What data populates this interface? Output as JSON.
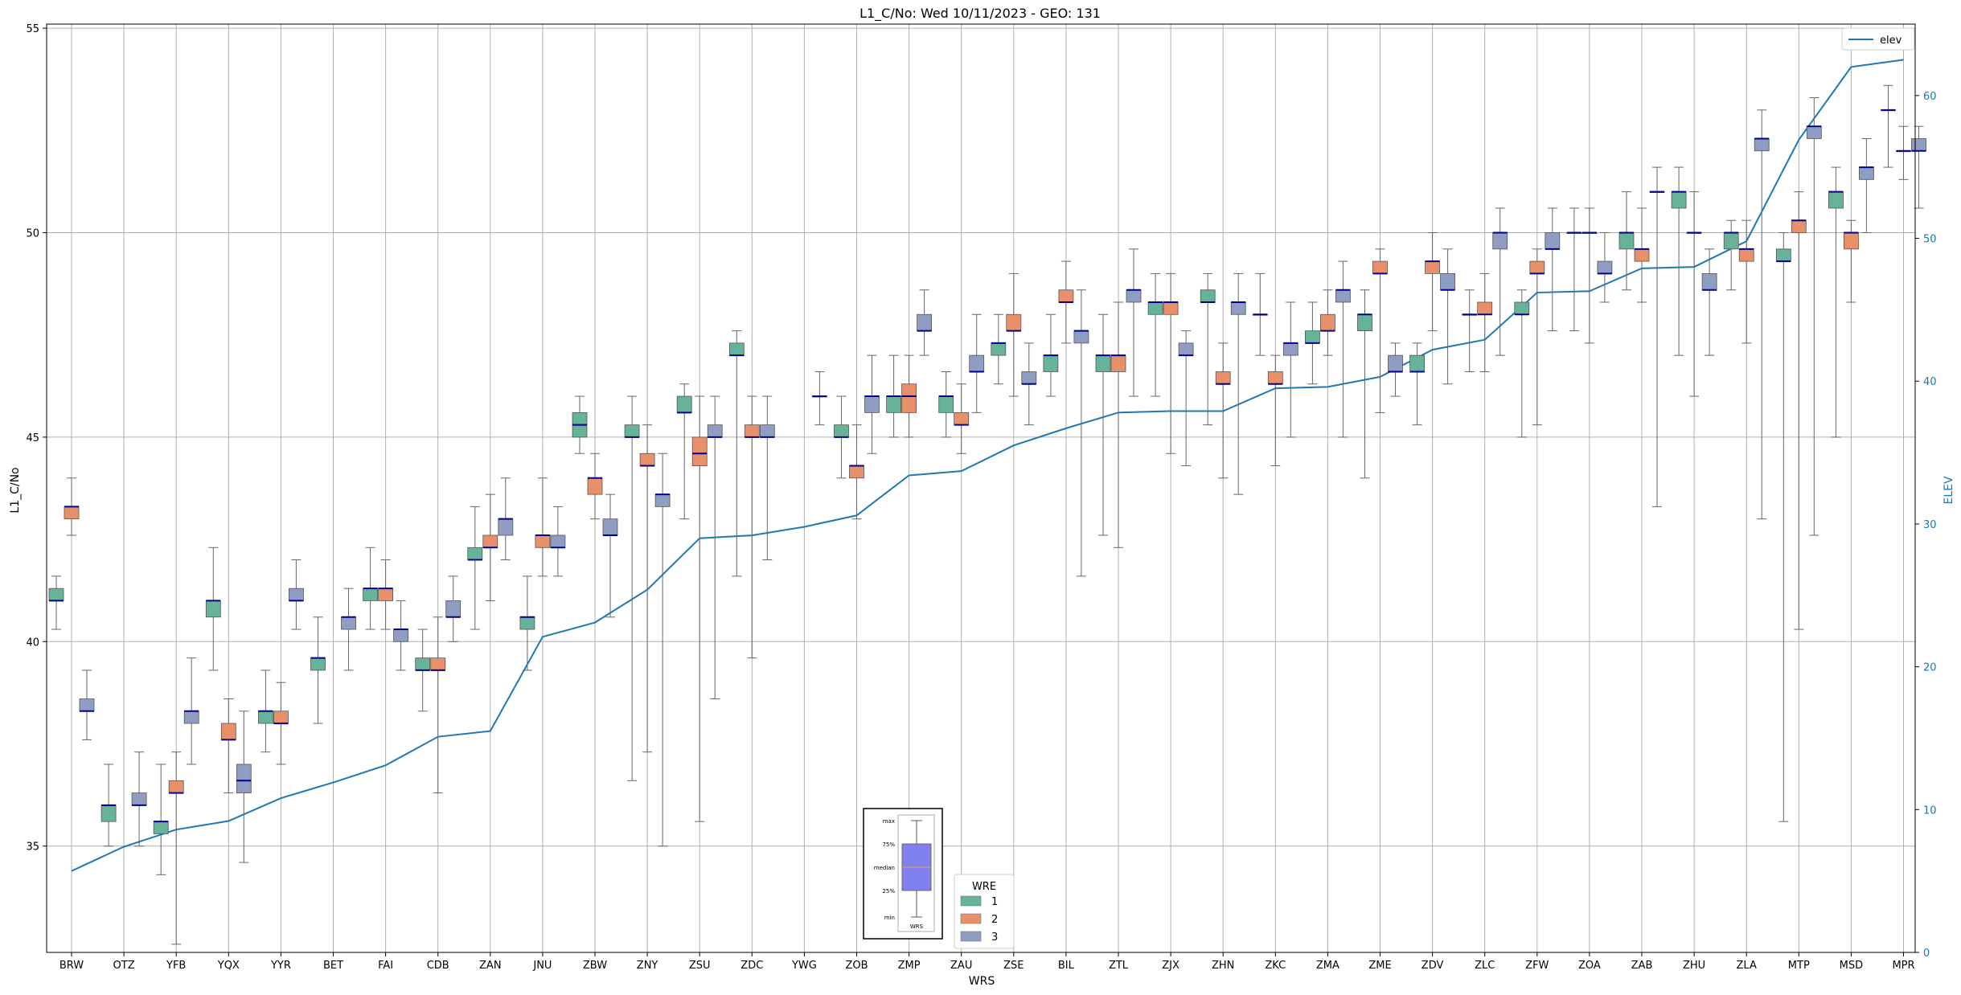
{
  "chart_data": {
    "type": "box",
    "title": "L1_C/No: Wed 10/11/2023 - GEO: 131",
    "xlabel": "WRS",
    "ylabel": "L1_C/No",
    "y2label": "ELEV",
    "ylim": [
      32.4,
      55.1
    ],
    "y2lim": [
      0,
      65
    ],
    "yticks": [
      35,
      40,
      45,
      50,
      55
    ],
    "y2ticks": [
      0,
      10,
      20,
      30,
      40,
      50,
      60
    ],
    "grid": true,
    "categories": [
      "BRW",
      "OTZ",
      "YFB",
      "YQX",
      "YYR",
      "BET",
      "FAI",
      "CDB",
      "ZAN",
      "JNU",
      "ZBW",
      "ZNY",
      "ZSU",
      "ZDC",
      "YWG",
      "ZOB",
      "ZMP",
      "ZAU",
      "ZSE",
      "BIL",
      "ZTL",
      "ZJX",
      "ZHN",
      "ZKC",
      "ZMA",
      "ZME",
      "ZDV",
      "ZLC",
      "ZFW",
      "ZOA",
      "ZAB",
      "ZHU",
      "ZLA",
      "MTP",
      "MSD",
      "MPR"
    ],
    "elev": [
      5.7,
      7.4,
      8.6,
      9.2,
      10.8,
      11.9,
      13.1,
      15.1,
      15.5,
      22.1,
      23.1,
      25.4,
      29.0,
      29.2,
      29.8,
      30.6,
      33.4,
      33.7,
      35.5,
      36.7,
      37.8,
      37.9,
      37.9,
      39.5,
      39.6,
      40.3,
      42.2,
      42.9,
      46.2,
      46.3,
      47.9,
      48.0,
      49.8,
      56.9,
      62.0,
      62.5
    ],
    "wre_colors": {
      "1": "#66b39a",
      "2": "#e8906a",
      "3": "#909dc2"
    },
    "elev_color": "#1f77b4",
    "legend_elev": "elev",
    "legend_wre_title": "WRE",
    "legend_wre_items": [
      "1",
      "2",
      "3"
    ],
    "boxes": [
      {
        "station": "BRW",
        "wre": 1,
        "min": 40.3,
        "q1": 41.0,
        "median": 41.0,
        "q3": 41.3,
        "max": 41.6
      },
      {
        "station": "BRW",
        "wre": 2,
        "min": 42.6,
        "q1": 43.0,
        "median": 43.3,
        "q3": 43.3,
        "max": 44.0
      },
      {
        "station": "BRW",
        "wre": 3,
        "min": 37.6,
        "q1": 38.3,
        "median": 38.3,
        "q3": 38.6,
        "max": 39.3
      },
      {
        "station": "OTZ",
        "wre": 1,
        "min": 35.0,
        "q1": 35.6,
        "median": 36.0,
        "q3": 36.0,
        "max": 37.0
      },
      {
        "station": "OTZ",
        "wre": 3,
        "min": 35.0,
        "q1": 36.0,
        "median": 36.0,
        "q3": 36.3,
        "max": 37.3
      },
      {
        "station": "YFB",
        "wre": 1,
        "min": 34.3,
        "q1": 35.3,
        "median": 35.6,
        "q3": 35.6,
        "max": 37.0
      },
      {
        "station": "YFB",
        "wre": 2,
        "min": 32.6,
        "q1": 36.3,
        "median": 36.3,
        "q3": 36.6,
        "max": 37.3
      },
      {
        "station": "YFB",
        "wre": 3,
        "min": 37.0,
        "q1": 38.0,
        "median": 38.3,
        "q3": 38.3,
        "max": 39.6
      },
      {
        "station": "YQX",
        "wre": 1,
        "min": 39.3,
        "q1": 40.6,
        "median": 41.0,
        "q3": 41.0,
        "max": 42.3
      },
      {
        "station": "YQX",
        "wre": 2,
        "min": 36.3,
        "q1": 37.6,
        "median": 37.6,
        "q3": 38.0,
        "max": 38.6
      },
      {
        "station": "YQX",
        "wre": 3,
        "min": 34.6,
        "q1": 36.3,
        "median": 36.6,
        "q3": 37.0,
        "max": 38.3
      },
      {
        "station": "YYR",
        "wre": 1,
        "min": 37.3,
        "q1": 38.0,
        "median": 38.3,
        "q3": 38.3,
        "max": 39.3
      },
      {
        "station": "YYR",
        "wre": 2,
        "min": 37.0,
        "q1": 38.0,
        "median": 38.0,
        "q3": 38.3,
        "max": 39.0
      },
      {
        "station": "YYR",
        "wre": 3,
        "min": 40.3,
        "q1": 41.0,
        "median": 41.0,
        "q3": 41.3,
        "max": 42.0
      },
      {
        "station": "BET",
        "wre": 1,
        "min": 38.0,
        "q1": 39.3,
        "median": 39.6,
        "q3": 39.6,
        "max": 40.6
      },
      {
        "station": "BET",
        "wre": 3,
        "min": 39.3,
        "q1": 40.3,
        "median": 40.6,
        "q3": 40.6,
        "max": 41.3
      },
      {
        "station": "FAI",
        "wre": 1,
        "min": 40.3,
        "q1": 41.0,
        "median": 41.3,
        "q3": 41.3,
        "max": 42.3
      },
      {
        "station": "FAI",
        "wre": 2,
        "min": 40.3,
        "q1": 41.0,
        "median": 41.3,
        "q3": 41.3,
        "max": 42.0
      },
      {
        "station": "FAI",
        "wre": 3,
        "min": 39.3,
        "q1": 40.0,
        "median": 40.3,
        "q3": 40.3,
        "max": 41.0
      },
      {
        "station": "CDB",
        "wre": 1,
        "min": 38.3,
        "q1": 39.3,
        "median": 39.3,
        "q3": 39.6,
        "max": 40.3
      },
      {
        "station": "CDB",
        "wre": 2,
        "min": 36.3,
        "q1": 39.3,
        "median": 39.3,
        "q3": 39.6,
        "max": 40.6
      },
      {
        "station": "CDB",
        "wre": 3,
        "min": 40.0,
        "q1": 40.6,
        "median": 40.6,
        "q3": 41.0,
        "max": 41.6
      },
      {
        "station": "ZAN",
        "wre": 1,
        "min": 40.3,
        "q1": 42.0,
        "median": 42.0,
        "q3": 42.3,
        "max": 43.3
      },
      {
        "station": "ZAN",
        "wre": 2,
        "min": 41.0,
        "q1": 42.3,
        "median": 42.3,
        "q3": 42.6,
        "max": 43.6
      },
      {
        "station": "ZAN",
        "wre": 3,
        "min": 42.0,
        "q1": 42.6,
        "median": 43.0,
        "q3": 43.0,
        "max": 44.0
      },
      {
        "station": "JNU",
        "wre": 1,
        "min": 39.3,
        "q1": 40.3,
        "median": 40.6,
        "q3": 40.6,
        "max": 41.6
      },
      {
        "station": "JNU",
        "wre": 2,
        "min": 41.6,
        "q1": 42.3,
        "median": 42.6,
        "q3": 42.6,
        "max": 44.0
      },
      {
        "station": "JNU",
        "wre": 3,
        "min": 41.6,
        "q1": 42.3,
        "median": 42.3,
        "q3": 42.6,
        "max": 43.3
      },
      {
        "station": "ZBW",
        "wre": 1,
        "min": 44.6,
        "q1": 45.0,
        "median": 45.3,
        "q3": 45.6,
        "max": 46.0
      },
      {
        "station": "ZBW",
        "wre": 2,
        "min": 43.0,
        "q1": 43.6,
        "median": 44.0,
        "q3": 44.0,
        "max": 44.6
      },
      {
        "station": "ZBW",
        "wre": 3,
        "min": 40.6,
        "q1": 42.6,
        "median": 42.6,
        "q3": 43.0,
        "max": 43.6
      },
      {
        "station": "ZNY",
        "wre": 1,
        "min": 36.6,
        "q1": 45.0,
        "median": 45.0,
        "q3": 45.3,
        "max": 46.0
      },
      {
        "station": "ZNY",
        "wre": 2,
        "min": 37.3,
        "q1": 44.3,
        "median": 44.3,
        "q3": 44.6,
        "max": 45.3
      },
      {
        "station": "ZNY",
        "wre": 3,
        "min": 35.0,
        "q1": 43.3,
        "median": 43.6,
        "q3": 43.6,
        "max": 44.6
      },
      {
        "station": "ZSU",
        "wre": 1,
        "min": 43.0,
        "q1": 45.6,
        "median": 45.6,
        "q3": 46.0,
        "max": 46.3
      },
      {
        "station": "ZSU",
        "wre": 2,
        "min": 35.6,
        "q1": 44.3,
        "median": 44.6,
        "q3": 45.0,
        "max": 46.0
      },
      {
        "station": "ZSU",
        "wre": 3,
        "min": 38.6,
        "q1": 45.0,
        "median": 45.0,
        "q3": 45.3,
        "max": 46.0
      },
      {
        "station": "ZDC",
        "wre": 1,
        "min": 41.6,
        "q1": 47.0,
        "median": 47.0,
        "q3": 47.3,
        "max": 47.6
      },
      {
        "station": "ZDC",
        "wre": 2,
        "min": 39.6,
        "q1": 45.0,
        "median": 45.0,
        "q3": 45.3,
        "max": 46.0
      },
      {
        "station": "ZDC",
        "wre": 3,
        "min": 42.0,
        "q1": 45.0,
        "median": 45.0,
        "q3": 45.3,
        "max": 46.0
      },
      {
        "station": "YWG",
        "wre": 3,
        "min": 45.3,
        "q1": 46.0,
        "median": 46.0,
        "q3": 46.0,
        "max": 46.6
      },
      {
        "station": "ZOB",
        "wre": 1,
        "min": 44.0,
        "q1": 45.0,
        "median": 45.0,
        "q3": 45.3,
        "max": 46.0
      },
      {
        "station": "ZOB",
        "wre": 2,
        "min": 43.0,
        "q1": 44.0,
        "median": 44.3,
        "q3": 44.3,
        "max": 45.3
      },
      {
        "station": "ZOB",
        "wre": 3,
        "min": 44.6,
        "q1": 45.6,
        "median": 46.0,
        "q3": 46.0,
        "max": 47.0
      },
      {
        "station": "ZMP",
        "wre": 1,
        "min": 45.0,
        "q1": 45.6,
        "median": 46.0,
        "q3": 46.0,
        "max": 47.0
      },
      {
        "station": "ZMP",
        "wre": 2,
        "min": 45.0,
        "q1": 45.6,
        "median": 46.0,
        "q3": 46.3,
        "max": 47.0
      },
      {
        "station": "ZMP",
        "wre": 3,
        "min": 47.0,
        "q1": 47.6,
        "median": 47.6,
        "q3": 48.0,
        "max": 48.6
      },
      {
        "station": "ZAU",
        "wre": 1,
        "min": 45.0,
        "q1": 45.6,
        "median": 46.0,
        "q3": 46.0,
        "max": 46.6
      },
      {
        "station": "ZAU",
        "wre": 2,
        "min": 44.6,
        "q1": 45.3,
        "median": 45.3,
        "q3": 45.6,
        "max": 46.3
      },
      {
        "station": "ZAU",
        "wre": 3,
        "min": 45.6,
        "q1": 46.6,
        "median": 46.6,
        "q3": 47.0,
        "max": 48.0
      },
      {
        "station": "ZSE",
        "wre": 1,
        "min": 46.3,
        "q1": 47.0,
        "median": 47.3,
        "q3": 47.3,
        "max": 48.0
      },
      {
        "station": "ZSE",
        "wre": 2,
        "min": 46.0,
        "q1": 47.6,
        "median": 47.6,
        "q3": 48.0,
        "max": 49.0
      },
      {
        "station": "ZSE",
        "wre": 3,
        "min": 45.3,
        "q1": 46.3,
        "median": 46.3,
        "q3": 46.6,
        "max": 47.3
      },
      {
        "station": "BIL",
        "wre": 1,
        "min": 46.0,
        "q1": 46.6,
        "median": 47.0,
        "q3": 47.0,
        "max": 48.0
      },
      {
        "station": "BIL",
        "wre": 2,
        "min": 47.3,
        "q1": 48.3,
        "median": 48.3,
        "q3": 48.6,
        "max": 49.3
      },
      {
        "station": "BIL",
        "wre": 3,
        "min": 41.6,
        "q1": 47.3,
        "median": 47.6,
        "q3": 47.6,
        "max": 48.6
      },
      {
        "station": "ZTL",
        "wre": 1,
        "min": 42.6,
        "q1": 46.6,
        "median": 47.0,
        "q3": 47.0,
        "max": 48.0
      },
      {
        "station": "ZTL",
        "wre": 2,
        "min": 42.3,
        "q1": 46.6,
        "median": 47.0,
        "q3": 47.0,
        "max": 48.3
      },
      {
        "station": "ZTL",
        "wre": 3,
        "min": 46.0,
        "q1": 48.3,
        "median": 48.6,
        "q3": 48.6,
        "max": 49.6
      },
      {
        "station": "ZJX",
        "wre": 1,
        "min": 46.0,
        "q1": 48.0,
        "median": 48.3,
        "q3": 48.3,
        "max": 49.0
      },
      {
        "station": "ZJX",
        "wre": 2,
        "min": 44.6,
        "q1": 48.0,
        "median": 48.3,
        "q3": 48.3,
        "max": 49.0
      },
      {
        "station": "ZJX",
        "wre": 3,
        "min": 44.3,
        "q1": 47.0,
        "median": 47.0,
        "q3": 47.3,
        "max": 47.6
      },
      {
        "station": "ZHN",
        "wre": 1,
        "min": 45.3,
        "q1": 48.3,
        "median": 48.3,
        "q3": 48.6,
        "max": 49.0
      },
      {
        "station": "ZHN",
        "wre": 2,
        "min": 44.0,
        "q1": 46.3,
        "median": 46.3,
        "q3": 46.6,
        "max": 47.3
      },
      {
        "station": "ZHN",
        "wre": 3,
        "min": 43.6,
        "q1": 48.0,
        "median": 48.3,
        "q3": 48.3,
        "max": 49.0
      },
      {
        "station": "ZKC",
        "wre": 1,
        "min": 47.0,
        "q1": 48.0,
        "median": 48.0,
        "q3": 48.0,
        "max": 49.0
      },
      {
        "station": "ZKC",
        "wre": 2,
        "min": 44.3,
        "q1": 46.3,
        "median": 46.3,
        "q3": 46.6,
        "max": 47.0
      },
      {
        "station": "ZKC",
        "wre": 3,
        "min": 45.0,
        "q1": 47.0,
        "median": 47.3,
        "q3": 47.3,
        "max": 48.3
      },
      {
        "station": "ZMA",
        "wre": 1,
        "min": 46.3,
        "q1": 47.3,
        "median": 47.3,
        "q3": 47.6,
        "max": 48.3
      },
      {
        "station": "ZMA",
        "wre": 2,
        "min": 47.0,
        "q1": 47.6,
        "median": 47.6,
        "q3": 48.0,
        "max": 48.6
      },
      {
        "station": "ZMA",
        "wre": 3,
        "min": 45.0,
        "q1": 48.3,
        "median": 48.6,
        "q3": 48.6,
        "max": 49.3
      },
      {
        "station": "ZME",
        "wre": 1,
        "min": 44.0,
        "q1": 47.6,
        "median": 48.0,
        "q3": 48.0,
        "max": 48.6
      },
      {
        "station": "ZME",
        "wre": 2,
        "min": 45.6,
        "q1": 49.0,
        "median": 49.0,
        "q3": 49.3,
        "max": 49.6
      },
      {
        "station": "ZME",
        "wre": 3,
        "min": 46.0,
        "q1": 46.6,
        "median": 46.6,
        "q3": 47.0,
        "max": 47.3
      },
      {
        "station": "ZDV",
        "wre": 1,
        "min": 45.3,
        "q1": 46.6,
        "median": 46.6,
        "q3": 47.0,
        "max": 47.3
      },
      {
        "station": "ZDV",
        "wre": 2,
        "min": 47.6,
        "q1": 49.0,
        "median": 49.3,
        "q3": 49.3,
        "max": 50.0
      },
      {
        "station": "ZDV",
        "wre": 3,
        "min": 46.3,
        "q1": 48.6,
        "median": 48.6,
        "q3": 49.0,
        "max": 49.6
      },
      {
        "station": "ZLC",
        "wre": 1,
        "min": 46.6,
        "q1": 48.0,
        "median": 48.0,
        "q3": 48.0,
        "max": 48.6
      },
      {
        "station": "ZLC",
        "wre": 2,
        "min": 46.6,
        "q1": 48.0,
        "median": 48.0,
        "q3": 48.3,
        "max": 49.0
      },
      {
        "station": "ZLC",
        "wre": 3,
        "min": 47.0,
        "q1": 49.6,
        "median": 50.0,
        "q3": 50.0,
        "max": 50.6
      },
      {
        "station": "ZFW",
        "wre": 1,
        "min": 45.0,
        "q1": 48.0,
        "median": 48.0,
        "q3": 48.3,
        "max": 48.6
      },
      {
        "station": "ZFW",
        "wre": 2,
        "min": 45.3,
        "q1": 49.0,
        "median": 49.0,
        "q3": 49.3,
        "max": 49.6
      },
      {
        "station": "ZFW",
        "wre": 3,
        "min": 47.6,
        "q1": 49.6,
        "median": 49.6,
        "q3": 50.0,
        "max": 50.6
      },
      {
        "station": "ZOA",
        "wre": 1,
        "min": 47.6,
        "q1": 50.0,
        "median": 50.0,
        "q3": 50.0,
        "max": 50.6
      },
      {
        "station": "ZOA",
        "wre": 2,
        "min": 47.3,
        "q1": 50.0,
        "median": 50.0,
        "q3": 50.0,
        "max": 50.6
      },
      {
        "station": "ZOA",
        "wre": 3,
        "min": 48.3,
        "q1": 49.0,
        "median": 49.0,
        "q3": 49.3,
        "max": 50.0
      },
      {
        "station": "ZAB",
        "wre": 1,
        "min": 48.6,
        "q1": 49.6,
        "median": 50.0,
        "q3": 50.0,
        "max": 51.0
      },
      {
        "station": "ZAB",
        "wre": 2,
        "min": 48.3,
        "q1": 49.3,
        "median": 49.6,
        "q3": 49.6,
        "max": 50.6
      },
      {
        "station": "ZAB",
        "wre": 3,
        "min": 43.3,
        "q1": 51.0,
        "median": 51.0,
        "q3": 51.0,
        "max": 51.6
      },
      {
        "station": "ZHU",
        "wre": 1,
        "min": 47.0,
        "q1": 50.6,
        "median": 51.0,
        "q3": 51.0,
        "max": 51.6
      },
      {
        "station": "ZHU",
        "wre": 2,
        "min": 46.0,
        "q1": 50.0,
        "median": 50.0,
        "q3": 50.0,
        "max": 51.0
      },
      {
        "station": "ZHU",
        "wre": 3,
        "min": 47.0,
        "q1": 48.6,
        "median": 48.6,
        "q3": 49.0,
        "max": 49.6
      },
      {
        "station": "ZLA",
        "wre": 1,
        "min": 48.6,
        "q1": 49.6,
        "median": 50.0,
        "q3": 50.0,
        "max": 50.3
      },
      {
        "station": "ZLA",
        "wre": 2,
        "min": 47.3,
        "q1": 49.3,
        "median": 49.6,
        "q3": 49.6,
        "max": 50.3
      },
      {
        "station": "ZLA",
        "wre": 3,
        "min": 43.0,
        "q1": 52.0,
        "median": 52.3,
        "q3": 52.3,
        "max": 53.0
      },
      {
        "station": "MTP",
        "wre": 1,
        "min": 35.6,
        "q1": 49.3,
        "median": 49.3,
        "q3": 49.6,
        "max": 50.0
      },
      {
        "station": "MTP",
        "wre": 2,
        "min": 40.3,
        "q1": 50.0,
        "median": 50.3,
        "q3": 50.3,
        "max": 51.0
      },
      {
        "station": "MTP",
        "wre": 3,
        "min": 42.6,
        "q1": 52.3,
        "median": 52.6,
        "q3": 52.6,
        "max": 53.3
      },
      {
        "station": "MSD",
        "wre": 1,
        "min": 45.0,
        "q1": 50.6,
        "median": 51.0,
        "q3": 51.0,
        "max": 51.6
      },
      {
        "station": "MSD",
        "wre": 2,
        "min": 48.3,
        "q1": 49.6,
        "median": 50.0,
        "q3": 50.0,
        "max": 50.3
      },
      {
        "station": "MSD",
        "wre": 3,
        "min": 50.0,
        "q1": 51.3,
        "median": 51.6,
        "q3": 51.6,
        "max": 52.3
      },
      {
        "station": "MPR",
        "wre": 1,
        "min": 51.6,
        "q1": 53.0,
        "median": 53.0,
        "q3": 53.0,
        "max": 53.6
      },
      {
        "station": "MPR",
        "wre": 2,
        "min": 51.3,
        "q1": 52.0,
        "median": 52.0,
        "q3": 52.0,
        "max": 52.6
      },
      {
        "station": "MPR",
        "wre": 3,
        "min": 50.6,
        "q1": 52.0,
        "median": 52.0,
        "q3": 52.3,
        "max": 52.6
      }
    ],
    "inset_key": {
      "labels": [
        "max",
        "75%",
        "median",
        "25%",
        "min"
      ],
      "xlabel": "WRS"
    }
  }
}
